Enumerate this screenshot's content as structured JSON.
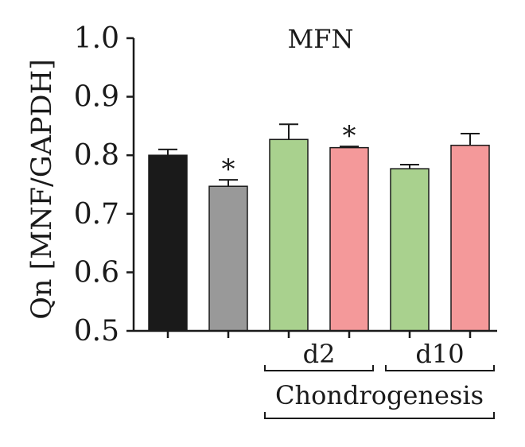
{
  "chart_data": {
    "type": "bar",
    "title": "MFN",
    "ylabel": "Qn [MNF/GAPDH]",
    "xlabel": "",
    "ylim": [
      0.5,
      1.0
    ],
    "yticks": [
      "0.5",
      "0.6",
      "0.7",
      "0.8",
      "0.9",
      "1.0"
    ],
    "bars": [
      {
        "value": 0.8,
        "error": 0.01,
        "color": "#1a1a1a",
        "annotation": ""
      },
      {
        "value": 0.747,
        "error": 0.011,
        "color": "#999999",
        "annotation": "*"
      },
      {
        "value": 0.827,
        "error": 0.026,
        "color": "#a9d18e",
        "annotation": ""
      },
      {
        "value": 0.813,
        "error": 0.002,
        "color": "#f4999a",
        "annotation": "*"
      },
      {
        "value": 0.777,
        "error": 0.007,
        "color": "#a9d18e",
        "annotation": ""
      },
      {
        "value": 0.817,
        "error": 0.02,
        "color": "#f4999a",
        "annotation": ""
      }
    ],
    "groups": [
      {
        "label": "d2",
        "bars": [
          2,
          3
        ]
      },
      {
        "label": "d10",
        "bars": [
          4,
          5
        ]
      }
    ],
    "supergroup": {
      "label": "Chondrogenesis",
      "bars": [
        2,
        5
      ]
    }
  }
}
